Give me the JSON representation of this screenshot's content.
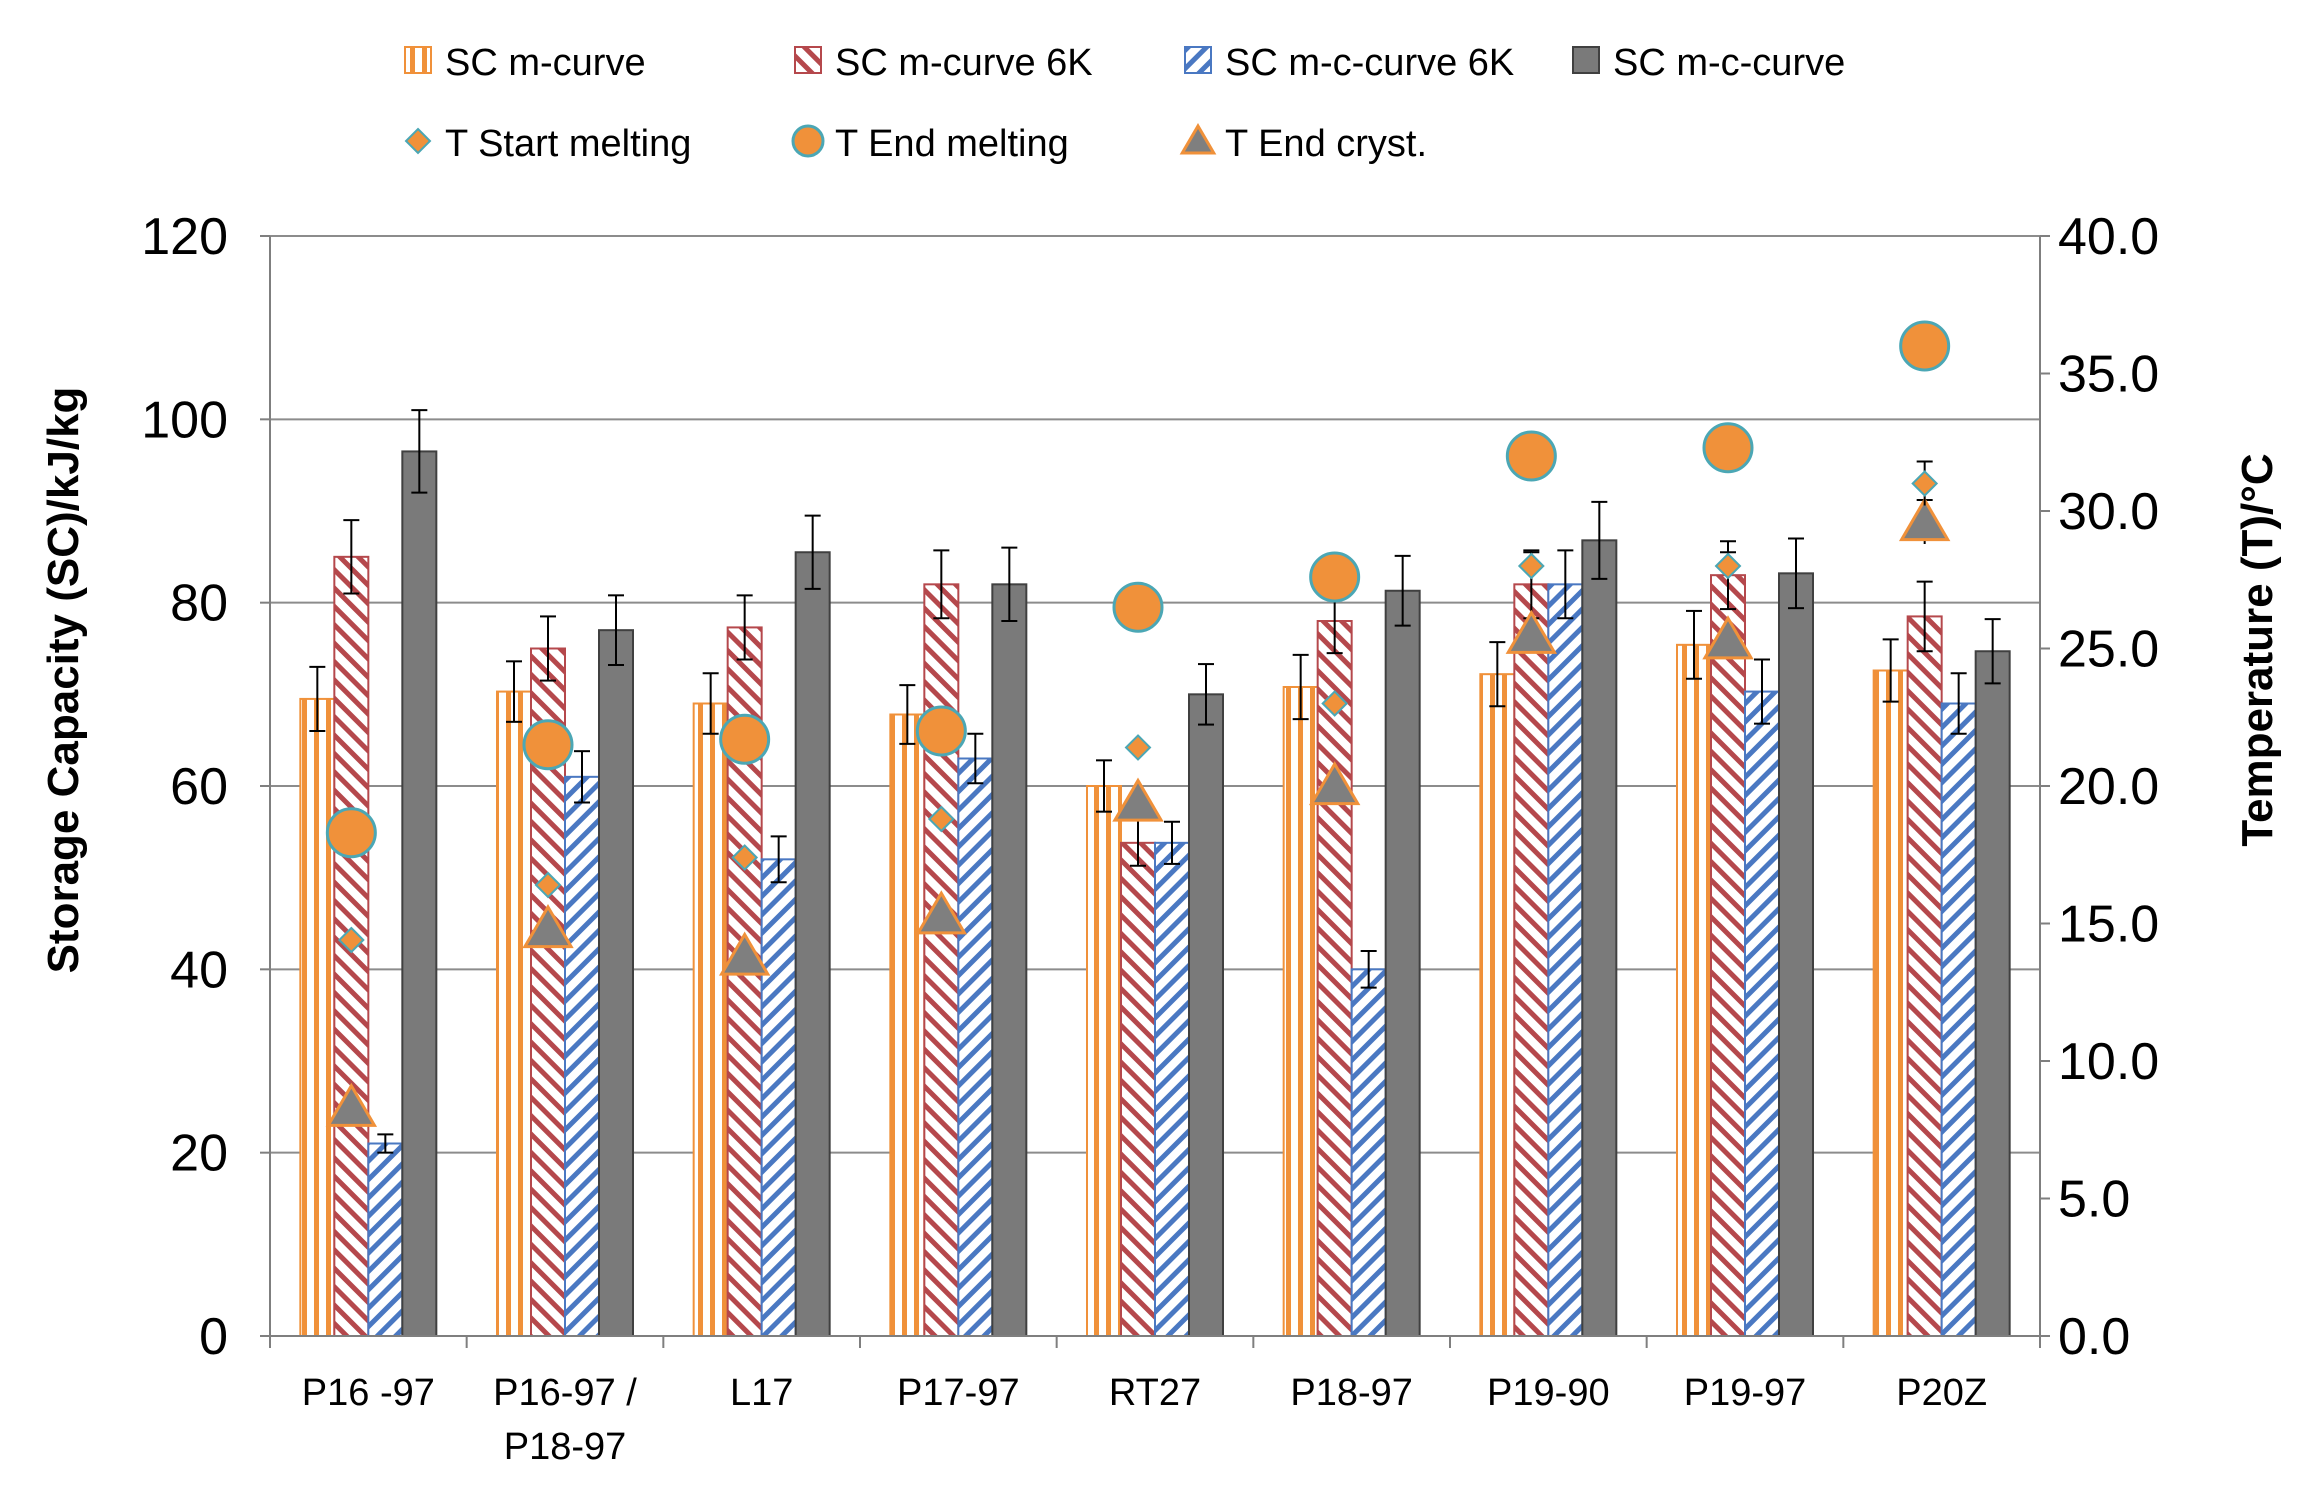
{
  "chart_data": {
    "type": "bar",
    "title": "",
    "categories": [
      "P16 -97",
      "P16-97 /\nP18-97",
      "L17",
      "P17-97",
      "RT27",
      "P18-97",
      "P19-90",
      "P19-97",
      "P20Z"
    ],
    "ylabel": "Storage Capacity (SC)/kJ/kg",
    "y2label": "Temperature (T)/°C",
    "ylim": [
      0,
      120
    ],
    "y2lim": [
      0,
      40
    ],
    "yticks": [
      "0",
      "20",
      "40",
      "60",
      "80",
      "100",
      "120"
    ],
    "y2ticks": [
      "0.0",
      "5.0",
      "10.0",
      "15.0",
      "20.0",
      "25.0",
      "30.0",
      "35.0",
      "40.0"
    ],
    "grid": "horizontal",
    "legend_position": "top",
    "series": [
      {
        "name": "SC m-curve",
        "axis": "left",
        "kind": "bar",
        "pattern": "vertical-orange",
        "values": [
          69.5,
          70.3,
          69,
          67.8,
          60,
          70.8,
          72.2,
          75.4,
          72.6
        ],
        "errors": [
          3.5,
          3.3,
          3.3,
          3.2,
          2.8,
          3.5,
          3.5,
          3.7,
          3.4
        ]
      },
      {
        "name": "SC m-curve  6K",
        "axis": "left",
        "kind": "bar",
        "pattern": "diagonal-red",
        "values": [
          85,
          75,
          77.3,
          82,
          53.8,
          78,
          82,
          83,
          78.5
        ],
        "errors": [
          4,
          3.5,
          3.5,
          3.7,
          2.5,
          3.5,
          3.7,
          3.7,
          3.8
        ]
      },
      {
        "name": "SC m-c-curve 6K",
        "axis": "left",
        "kind": "bar",
        "pattern": "diagonal-blue",
        "values": [
          21,
          61,
          52,
          63,
          53.8,
          40,
          82,
          70.3,
          69
        ],
        "errors": [
          1,
          2.8,
          2.5,
          2.7,
          2.3,
          2,
          3.7,
          3.5,
          3.3
        ]
      },
      {
        "name": "SC m-c-curve",
        "axis": "left",
        "kind": "bar",
        "pattern": "solid-gray",
        "values": [
          96.5,
          77,
          85.5,
          82,
          70,
          81.3,
          86.8,
          83.2,
          74.7
        ],
        "errors": [
          4.5,
          3.8,
          4,
          4,
          3.3,
          3.8,
          4.2,
          3.8,
          3.5
        ]
      },
      {
        "name": "T Start melting",
        "axis": "right",
        "kind": "marker",
        "marker": "diamond",
        "values": [
          14.4,
          16.4,
          17.4,
          18.8,
          21.4,
          23,
          28,
          28,
          31
        ],
        "errors": [
          0,
          0,
          0,
          0,
          0,
          0,
          0.5,
          0.5,
          0.8
        ]
      },
      {
        "name": "T End melting",
        "axis": "right",
        "kind": "marker",
        "marker": "circle",
        "values": [
          18.3,
          21.5,
          21.7,
          22,
          26.5,
          27.6,
          32,
          32.3,
          36
        ],
        "errors": [
          0,
          0,
          0,
          0,
          0,
          0,
          0,
          0,
          0.8
        ]
      },
      {
        "name": "T End cryst.",
        "axis": "right",
        "kind": "marker",
        "marker": "triangle",
        "values": [
          8.3,
          14.8,
          13.8,
          15.3,
          19.4,
          20,
          25.5,
          25.3,
          29.6
        ],
        "errors": [
          0,
          0,
          0,
          0,
          0,
          0,
          0,
          0,
          0.8
        ]
      }
    ]
  },
  "colors": {
    "orange": "#F0913A",
    "red": "#B5484C",
    "blue": "#4A78C2",
    "gray": "#7A7A7A",
    "marker_edge": "#4BA7B5",
    "triangle_fill": "#7F7F7F",
    "triangle_edge": "#F0913A",
    "grid": "#8C8C8C"
  }
}
